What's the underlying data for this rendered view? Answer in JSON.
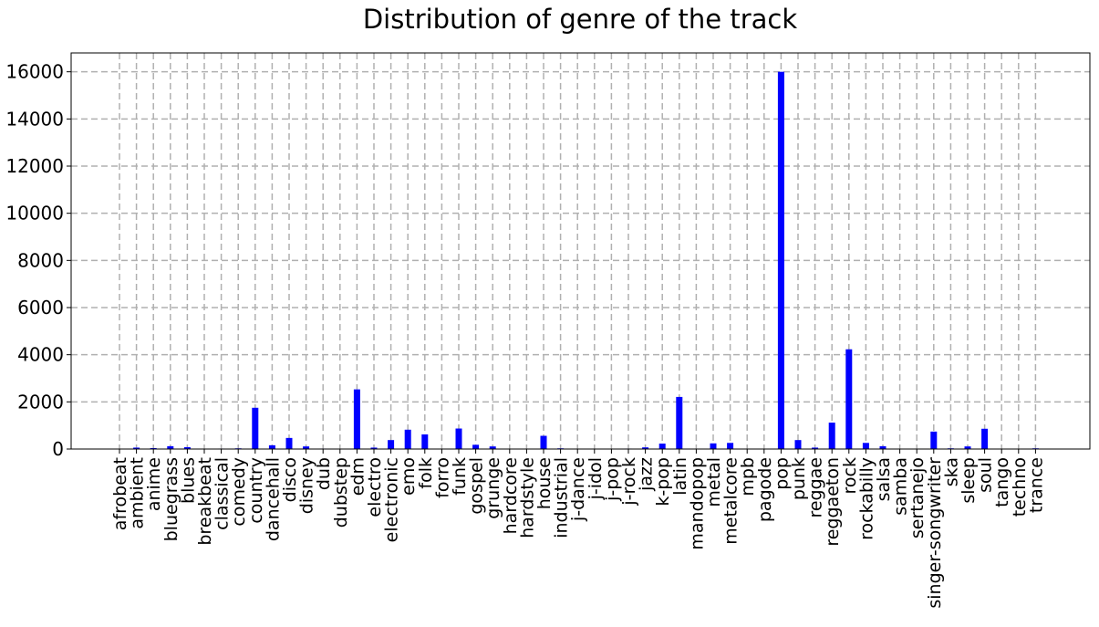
{
  "chart_data": {
    "type": "bar",
    "title": "Distribution of genre of the track",
    "xlabel": "",
    "ylabel": "",
    "ylim": [
      0,
      16800
    ],
    "yticks": [
      0,
      2000,
      4000,
      6000,
      8000,
      10000,
      12000,
      14000,
      16000
    ],
    "ytick_labels": [
      "0",
      "2000",
      "4000",
      "6000",
      "8000",
      "10000",
      "12000",
      "14000",
      "16000"
    ],
    "grid": true,
    "bar_color": "#0000ff",
    "categories": [
      "afrobeat",
      "ambient",
      "anime",
      "bluegrass",
      "blues",
      "breakbeat",
      "classical",
      "comedy",
      "country",
      "dancehall",
      "disco",
      "disney",
      "dub",
      "dubstep",
      "edm",
      "electro",
      "electronic",
      "emo",
      "folk",
      "forro",
      "funk",
      "gospel",
      "grunge",
      "hardcore",
      "hardstyle",
      "house",
      "industrial",
      "j-dance",
      "j-idol",
      "j-pop",
      "j-rock",
      "jazz",
      "k-pop",
      "latin",
      "mandopop",
      "metal",
      "metalcore",
      "mpb",
      "pagode",
      "pop",
      "punk",
      "reggae",
      "reggaeton",
      "rock",
      "rockabilly",
      "salsa",
      "samba",
      "sertanejo",
      "singer-songwriter",
      "ska",
      "sleep",
      "soul",
      "tango",
      "techno",
      "trance"
    ],
    "values": [
      0,
      60,
      40,
      120,
      80,
      0,
      20,
      30,
      1750,
      160,
      470,
      110,
      20,
      0,
      2530,
      60,
      380,
      820,
      620,
      0,
      870,
      180,
      110,
      0,
      0,
      560,
      30,
      0,
      0,
      0,
      20,
      70,
      230,
      2210,
      0,
      240,
      260,
      0,
      0,
      16000,
      380,
      60,
      1120,
      4230,
      260,
      120,
      0,
      0,
      740,
      30,
      110,
      860,
      0,
      0,
      30
    ]
  }
}
